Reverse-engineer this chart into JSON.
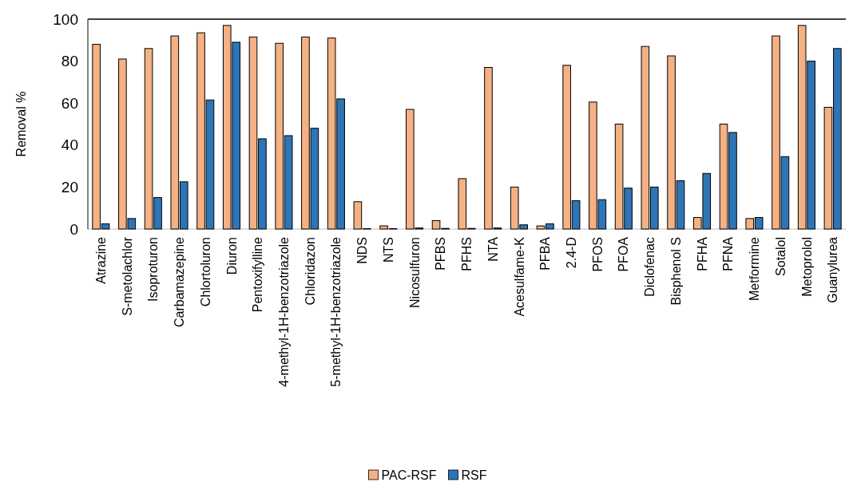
{
  "chart_data": {
    "type": "bar",
    "ylabel": "Removal %",
    "categories": [
      "Atrazine",
      "S-metolachlor",
      "Isoproturon",
      "Carbamazepine",
      "Chlortoluron",
      "Diuron",
      "Pentoxifylline",
      "4-methyl-1H-benzotriazole",
      "Chloridazon",
      "5-methyl-1H-benzotriazole",
      "NDS",
      "NTS",
      "Nicosulfuron",
      "PFBS",
      "PFHS",
      "NTA",
      "Acesulfame-K",
      "PFBA",
      "2.4-D",
      "PFOS",
      "PFOA",
      "Diclofenac",
      "Bisphenol S",
      "PFHA",
      "PFNA",
      "Metformine",
      "Sotalol",
      "Metoprolol",
      "Guanylurea"
    ],
    "series": [
      {
        "name": "PAC-RSF",
        "color": "#f4b183",
        "values": [
          88,
          81,
          86,
          92,
          93.5,
          97,
          91.5,
          88.5,
          91.5,
          91,
          13,
          1.5,
          57,
          4,
          24,
          77,
          20,
          1.5,
          78,
          60.5,
          50,
          87,
          82.5,
          5.5,
          50,
          5,
          92,
          97,
          58
        ]
      },
      {
        "name": "RSF",
        "color": "#2e75b6",
        "values": [
          2.5,
          5,
          15,
          22.5,
          61.5,
          89,
          43,
          44.5,
          48,
          62,
          0.2,
          0.2,
          0.5,
          0.3,
          0.3,
          0.5,
          2,
          2.5,
          13.5,
          14,
          19.5,
          20,
          23,
          26.5,
          46,
          5.5,
          34.5,
          80,
          86
        ]
      }
    ],
    "ylim": [
      0,
      100
    ],
    "yticks": [
      0,
      20,
      40,
      60,
      80,
      100
    ],
    "legend": "bottom"
  }
}
